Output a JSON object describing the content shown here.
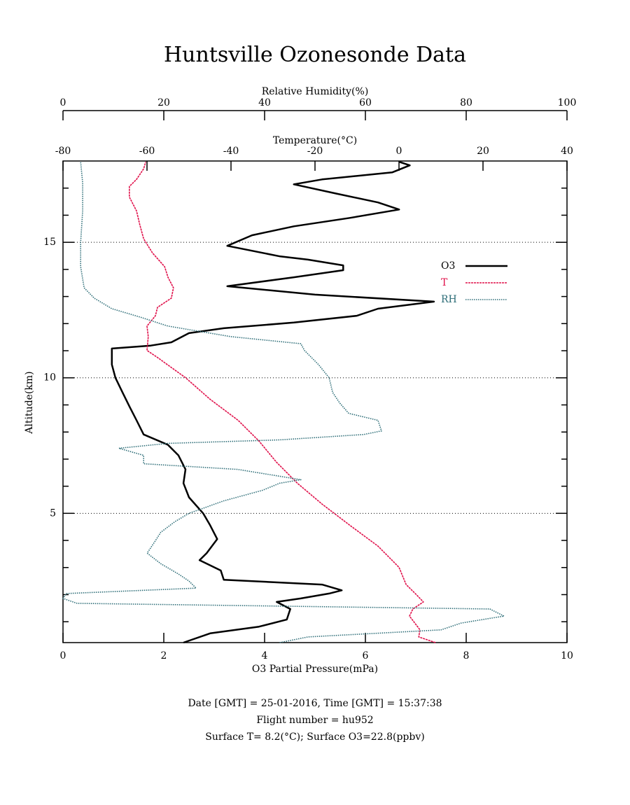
{
  "chart_data": {
    "type": "line",
    "title": "Huntsville Ozonesonde Data",
    "xlabel": "O3 Partial Pressure(mPa)",
    "x2label": "Temperature(°C)",
    "x3label": "Relative Humidity(%)",
    "ylabel": "Altitude(km)",
    "xlim": [
      0,
      10
    ],
    "xticks": [
      0,
      2,
      4,
      6,
      8,
      10
    ],
    "x2lim": [
      -80,
      40
    ],
    "x2ticks": [
      -80,
      -60,
      -40,
      -20,
      0,
      20,
      40
    ],
    "x3lim": [
      0,
      100
    ],
    "x3ticks": [
      0,
      20,
      40,
      60,
      80,
      100
    ],
    "ylim": [
      0.23,
      18
    ],
    "yticks": [
      5,
      10,
      15
    ],
    "yminor_ticks": [
      1,
      2,
      3,
      4,
      6,
      7,
      8,
      9,
      11,
      12,
      13,
      14,
      16,
      17
    ],
    "grid": true,
    "legend": "right",
    "series": [
      {
        "name": "O3",
        "color": "#000000",
        "axis": "x",
        "altitude": [
          0.23,
          0.57,
          0.82,
          1.08,
          1.47,
          1.73,
          1.86,
          2.04,
          2.16,
          2.37,
          2.55,
          2.89,
          3.27,
          3.53,
          4.05,
          4.56,
          5.0,
          5.59,
          6.11,
          6.62,
          7.14,
          7.53,
          7.91,
          8.43,
          8.94,
          9.46,
          10.0,
          10.49,
          11.08,
          11.19,
          11.31,
          11.65,
          11.83,
          12.04,
          12.29,
          12.55,
          12.81,
          13.07,
          13.38,
          13.71,
          13.97,
          14.15,
          14.36,
          14.48,
          14.87,
          15.26,
          15.59,
          15.9,
          16.21,
          16.47,
          16.8,
          17.14,
          17.32,
          17.58,
          17.84,
          17.97
        ],
        "values": [
          2.39,
          2.92,
          3.89,
          4.44,
          4.51,
          4.24,
          4.72,
          5.28,
          5.53,
          5.14,
          3.19,
          3.13,
          2.71,
          2.85,
          3.06,
          2.92,
          2.78,
          2.5,
          2.39,
          2.43,
          2.29,
          2.08,
          1.6,
          1.46,
          1.32,
          1.18,
          1.04,
          0.97,
          0.97,
          1.74,
          2.15,
          2.5,
          3.19,
          4.58,
          5.83,
          6.25,
          7.36,
          5.0,
          3.26,
          4.58,
          5.56,
          5.56,
          4.86,
          4.31,
          3.26,
          3.75,
          4.58,
          5.69,
          6.67,
          6.25,
          5.42,
          4.58,
          5.14,
          6.53,
          6.88,
          6.67
        ]
      },
      {
        "name": "T",
        "color": "#e0104a",
        "axis": "x2",
        "altitude": [
          0.23,
          0.44,
          0.7,
          1.21,
          1.47,
          1.73,
          1.99,
          2.37,
          3.01,
          3.79,
          4.56,
          5.34,
          6.11,
          6.89,
          7.66,
          8.43,
          9.21,
          10.0,
          10.75,
          11.01,
          11.52,
          11.91,
          12.29,
          12.6,
          12.94,
          13.32,
          13.71,
          14.1,
          14.61,
          15.13,
          15.64,
          16.16,
          16.67,
          17.06,
          17.32,
          17.71,
          17.97
        ],
        "values": [
          8.7,
          4.7,
          5.0,
          2.5,
          3.3,
          5.8,
          4.2,
          1.7,
          0,
          -5,
          -11.7,
          -18.3,
          -24.2,
          -29.2,
          -33.3,
          -38.3,
          -45,
          -50.8,
          -57.5,
          -60,
          -59.7,
          -60,
          -58,
          -57.5,
          -54.2,
          -53.7,
          -55,
          -55.8,
          -58.7,
          -60.8,
          -61.7,
          -62.5,
          -64.2,
          -64.2,
          -62.5,
          -60.8,
          -60.3
        ]
      },
      {
        "name": "RH",
        "color": "#2e6e78",
        "axis": "x3",
        "altitude": [
          0.23,
          0.44,
          0.7,
          0.95,
          1.21,
          1.47,
          1.68,
          1.86,
          2.04,
          2.24,
          2.5,
          2.76,
          3.14,
          3.53,
          3.92,
          4.3,
          4.69,
          5.0,
          5.46,
          5.85,
          6.11,
          6.24,
          6.62,
          6.83,
          7.14,
          7.4,
          7.58,
          7.71,
          7.91,
          8.04,
          8.43,
          8.69,
          9.07,
          9.46,
          10.0,
          10.49,
          11.01,
          11.26,
          11.52,
          11.91,
          12.24,
          12.55,
          12.94,
          13.32,
          14.1,
          15.0,
          16.16,
          17.19,
          17.97
        ],
        "values": [
          43,
          48.6,
          75,
          79,
          87.5,
          84.7,
          2.8,
          0,
          0.7,
          26.4,
          25,
          22.9,
          19.4,
          16.7,
          18.1,
          19.4,
          22.2,
          25,
          31.9,
          39.6,
          43,
          47.2,
          34.7,
          16,
          16,
          11.1,
          20.8,
          43,
          59.7,
          63.2,
          62.5,
          56.7,
          54.9,
          53.5,
          52.8,
          50.7,
          47.9,
          47.2,
          33.3,
          20.8,
          15.3,
          9.7,
          6.2,
          4.2,
          3.5,
          3.5,
          3.9,
          3.9,
          3.5
        ]
      }
    ],
    "notes": [
      "Date [GMT] = 25-01-2016,  Time [GMT] = 15:37:38",
      "Flight number = hu952",
      "Surface T= 8.2(°C); Surface O3=22.8(ppbv)"
    ]
  }
}
